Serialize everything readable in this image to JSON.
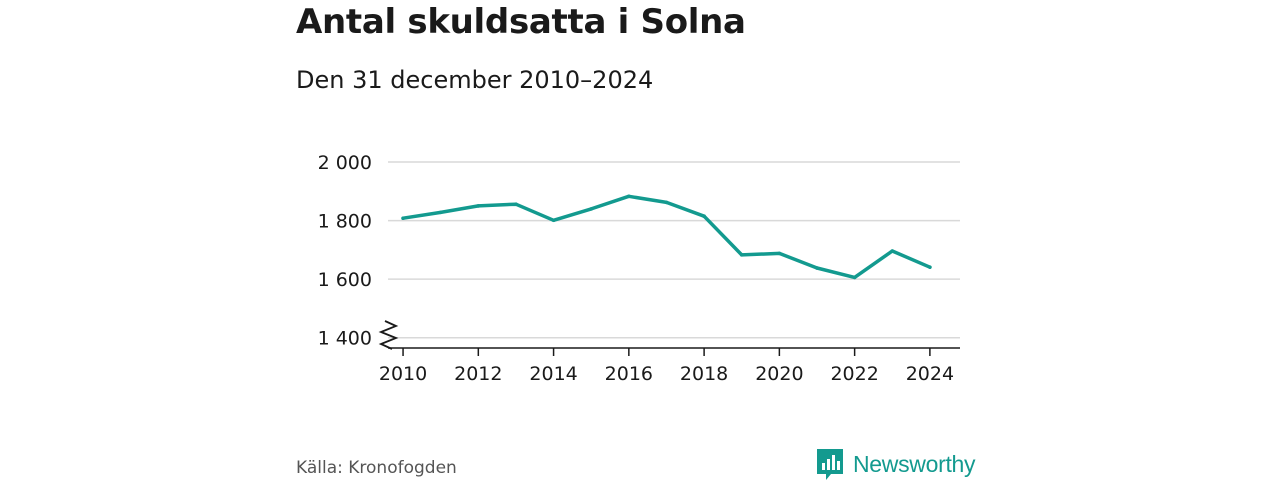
{
  "title": "Antal skuldsatta i Solna",
  "subtitle": "Den 31 december 2010–2024",
  "source": "Källa: Kronofogden",
  "brand": {
    "name": "Newsworthy",
    "icon": "newsworthy-logo-icon"
  },
  "colors": {
    "line": "#139a8f",
    "grid": "#d9d9d9",
    "axis": "#1a1a1a"
  },
  "chart_data": {
    "type": "line",
    "title": "Antal skuldsatta i Solna",
    "subtitle": "Den 31 december 2010–2024",
    "xlabel": "",
    "ylabel": "",
    "x": [
      2010,
      2011,
      2012,
      2013,
      2014,
      2015,
      2016,
      2017,
      2018,
      2019,
      2020,
      2021,
      2022,
      2023,
      2024
    ],
    "series": [
      {
        "name": "Antal skuldsatta",
        "values": [
          1808,
          1828,
          1850,
          1856,
          1801,
          1840,
          1883,
          1862,
          1815,
          1683,
          1688,
          1638,
          1606,
          1696,
          1641
        ]
      }
    ],
    "xticks": [
      2010,
      2012,
      2014,
      2016,
      2018,
      2020,
      2022,
      2024
    ],
    "xtick_labels": [
      "2010",
      "2012",
      "2014",
      "2016",
      "2018",
      "2020",
      "2022",
      "2024"
    ],
    "yticks": [
      1400,
      1600,
      1800,
      2000
    ],
    "ytick_labels": [
      "1 400",
      "1 600",
      "1 800",
      "2 000"
    ],
    "ylim": [
      1365,
      2000
    ],
    "xlim": [
      2009.6,
      2024.8
    ],
    "axis_break": true,
    "grid": true
  }
}
